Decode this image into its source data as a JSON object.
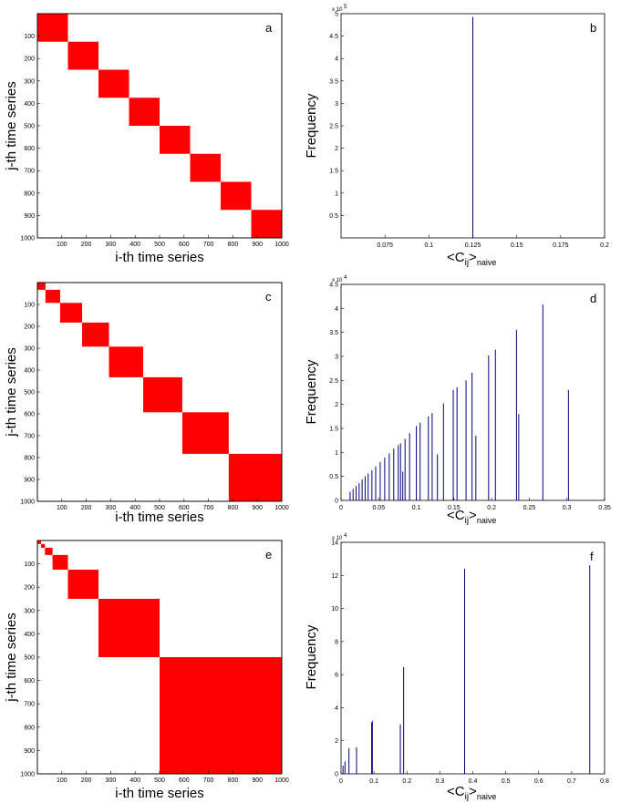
{
  "colors": {
    "block": "#ff0000",
    "line": "#00007f",
    "axis": "#000000"
  },
  "chart_data": [
    {
      "panel": "a",
      "type": "heatmap",
      "title": "",
      "xlabel": "i-th time series",
      "ylabel": "j-th time series",
      "xlim": [
        0,
        1000
      ],
      "ylim": [
        0,
        1000
      ],
      "xticks": [
        100,
        200,
        300,
        400,
        500,
        600,
        700,
        800,
        900,
        1000
      ],
      "yticks": [
        100,
        200,
        300,
        400,
        500,
        600,
        700,
        800,
        900,
        1000
      ],
      "blocks": [
        [
          0,
          125
        ],
        [
          125,
          250
        ],
        [
          250,
          375
        ],
        [
          375,
          500
        ],
        [
          500,
          625
        ],
        [
          625,
          750
        ],
        [
          750,
          875
        ],
        [
          875,
          1000
        ]
      ]
    },
    {
      "panel": "b",
      "type": "bar",
      "xlabel_main": "<C",
      "xlabel_sub1": "ij",
      "xlabel_mid": ">",
      "xlabel_sub2": "naive",
      "ylabel": "Frequency",
      "xlim": [
        0.05,
        0.2
      ],
      "ylim": [
        0,
        5
      ],
      "xticks": [
        0.075,
        0.1,
        0.125,
        0.15,
        0.175,
        0.2
      ],
      "xtick_labels": [
        "0.075",
        "0.1",
        "0.125",
        "0.15",
        "0.175",
        "0.2"
      ],
      "yticks": [
        0.5,
        1,
        1.5,
        2,
        2.5,
        3,
        3.5,
        4,
        4.5,
        5
      ],
      "ytick_labels": [
        "0.5",
        "1",
        "1.5",
        "2",
        "2.5",
        "3",
        "3.5",
        "4",
        "4.5",
        "5"
      ],
      "exponent_base": "x 10",
      "exponent_power": "5",
      "bars": [
        {
          "x": 0.125,
          "y": 4.93
        }
      ]
    },
    {
      "panel": "c",
      "type": "heatmap",
      "title": "",
      "xlabel": "i-th time series",
      "ylabel": "j-th time series",
      "xlim": [
        0,
        1000
      ],
      "ylim": [
        0,
        1000
      ],
      "xticks": [
        100,
        200,
        300,
        400,
        500,
        600,
        700,
        800,
        900,
        1000
      ],
      "yticks": [
        100,
        200,
        300,
        400,
        500,
        600,
        700,
        800,
        900,
        1000
      ],
      "blocks": [
        [
          0,
          33
        ],
        [
          33,
          93
        ],
        [
          93,
          183
        ],
        [
          183,
          293
        ],
        [
          293,
          433
        ],
        [
          433,
          593
        ],
        [
          593,
          783
        ],
        [
          783,
          1000
        ]
      ]
    },
    {
      "panel": "d",
      "type": "bar",
      "xlabel_main": "<C",
      "xlabel_sub1": "ij",
      "xlabel_mid": ">",
      "xlabel_sub2": "naive",
      "ylabel": "Frequency",
      "xlim": [
        0,
        0.35
      ],
      "ylim": [
        0,
        4.5
      ],
      "xticks": [
        0,
        0.05,
        0.1,
        0.15,
        0.2,
        0.25,
        0.3,
        0.35
      ],
      "xtick_labels": [
        "0",
        "0.05",
        "0.1",
        "0.15",
        "0.2",
        "0.25",
        "0.3",
        "0.35"
      ],
      "yticks": [
        0,
        0.5,
        1,
        1.5,
        2,
        2.5,
        3,
        3.5,
        4,
        4.5
      ],
      "ytick_labels": [
        "0",
        "0.5",
        "1",
        "1.5",
        "2",
        "2.5",
        "3",
        "3.5",
        "4",
        "4.5"
      ],
      "exponent_base": "x 10",
      "exponent_power": "4",
      "bars": [
        {
          "x": 0.012,
          "y": 0.18
        },
        {
          "x": 0.016,
          "y": 0.24
        },
        {
          "x": 0.02,
          "y": 0.3
        },
        {
          "x": 0.024,
          "y": 0.36
        },
        {
          "x": 0.028,
          "y": 0.44
        },
        {
          "x": 0.032,
          "y": 0.5
        },
        {
          "x": 0.036,
          "y": 0.56
        },
        {
          "x": 0.041,
          "y": 0.63
        },
        {
          "x": 0.046,
          "y": 0.71
        },
        {
          "x": 0.052,
          "y": 0.8
        },
        {
          "x": 0.058,
          "y": 0.89
        },
        {
          "x": 0.064,
          "y": 0.98
        },
        {
          "x": 0.07,
          "y": 1.08
        },
        {
          "x": 0.076,
          "y": 1.15
        },
        {
          "x": 0.079,
          "y": 1.19
        },
        {
          "x": 0.082,
          "y": 0.6
        },
        {
          "x": 0.085,
          "y": 1.28
        },
        {
          "x": 0.091,
          "y": 1.4
        },
        {
          "x": 0.1,
          "y": 1.55
        },
        {
          "x": 0.105,
          "y": 1.62
        },
        {
          "x": 0.116,
          "y": 1.75
        },
        {
          "x": 0.121,
          "y": 1.82
        },
        {
          "x": 0.128,
          "y": 0.96
        },
        {
          "x": 0.136,
          "y": 2.02
        },
        {
          "x": 0.149,
          "y": 2.3
        },
        {
          "x": 0.154,
          "y": 2.36
        },
        {
          "x": 0.166,
          "y": 2.5
        },
        {
          "x": 0.174,
          "y": 2.66
        },
        {
          "x": 0.179,
          "y": 1.35
        },
        {
          "x": 0.196,
          "y": 3.02
        },
        {
          "x": 0.205,
          "y": 3.14
        },
        {
          "x": 0.233,
          "y": 3.55
        },
        {
          "x": 0.236,
          "y": 1.8
        },
        {
          "x": 0.268,
          "y": 4.08
        },
        {
          "x": 0.302,
          "y": 2.3
        }
      ]
    },
    {
      "panel": "e",
      "type": "heatmap",
      "title": "",
      "xlabel": "i-th time series",
      "ylabel": "j-th time series",
      "xlim": [
        0,
        1000
      ],
      "ylim": [
        0,
        1000
      ],
      "xticks": [
        100,
        200,
        300,
        400,
        500,
        600,
        700,
        800,
        900,
        1000
      ],
      "yticks": [
        100,
        200,
        300,
        400,
        500,
        600,
        700,
        800,
        900,
        1000
      ],
      "blocks": [
        [
          0,
          15
        ],
        [
          15,
          31
        ],
        [
          31,
          62
        ],
        [
          62,
          125
        ],
        [
          125,
          250
        ],
        [
          250,
          500
        ],
        [
          500,
          1000
        ]
      ]
    },
    {
      "panel": "f",
      "type": "bar",
      "xlabel_main": "<C",
      "xlabel_sub1": "ij",
      "xlabel_mid": ">",
      "xlabel_sub2": "naive",
      "ylabel": "Frequency",
      "xlim": [
        0,
        0.8
      ],
      "ylim": [
        0,
        14
      ],
      "xticks": [
        0,
        0.1,
        0.2,
        0.3,
        0.4,
        0.5,
        0.6,
        0.7,
        0.8
      ],
      "xtick_labels": [
        "0",
        "0.1",
        "0.2",
        "0.3",
        "0.4",
        "0.5",
        "0.6",
        "0.7",
        "0.8"
      ],
      "yticks": [
        0,
        2,
        4,
        6,
        8,
        10,
        12,
        14
      ],
      "ytick_labels": [
        "0",
        "2",
        "4",
        "6",
        "8",
        "10",
        "12",
        "14"
      ],
      "exponent_base": "x 10",
      "exponent_power": "4",
      "bars": [
        {
          "x": 0.006,
          "y": 0.5
        },
        {
          "x": 0.012,
          "y": 0.75
        },
        {
          "x": 0.024,
          "y": 1.55
        },
        {
          "x": 0.047,
          "y": 1.6
        },
        {
          "x": 0.093,
          "y": 3.1
        },
        {
          "x": 0.095,
          "y": 3.2
        },
        {
          "x": 0.18,
          "y": 3.0
        },
        {
          "x": 0.19,
          "y": 6.45
        },
        {
          "x": 0.375,
          "y": 12.4
        },
        {
          "x": 0.755,
          "y": 12.6
        }
      ]
    }
  ]
}
